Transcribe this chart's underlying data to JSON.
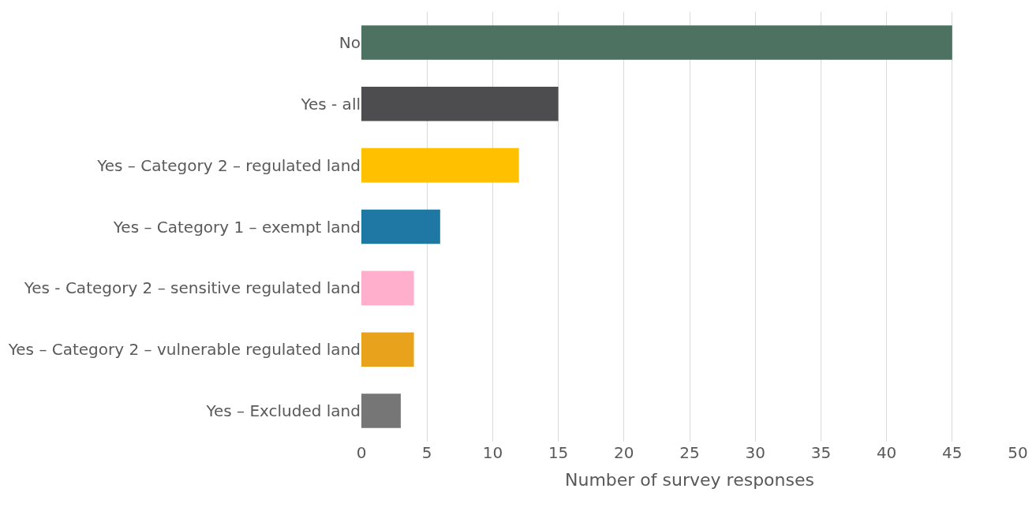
{
  "chart_data": {
    "type": "bar",
    "orientation": "horizontal",
    "xlabel": "Number of survey responses",
    "categories": [
      "No",
      "Yes - all",
      "Yes – Category 2 – regulated land",
      "Yes – Category 1 – exempt land",
      "Yes - Category 2 – sensitive regulated land",
      "Yes – Category 2 – vulnerable regulated land",
      "Yes – Excluded land"
    ],
    "values": [
      45,
      15,
      12,
      6,
      4,
      4,
      3
    ],
    "colors": [
      "#4d7262",
      "#4d4d4f",
      "#ffc000",
      "#1f77a4",
      "#ffafcb",
      "#e8a21c",
      "#767676"
    ],
    "xlim": [
      0,
      50
    ],
    "xticks": [
      0,
      5,
      10,
      15,
      20,
      25,
      30,
      35,
      40,
      45,
      50
    ],
    "grid": "x"
  }
}
